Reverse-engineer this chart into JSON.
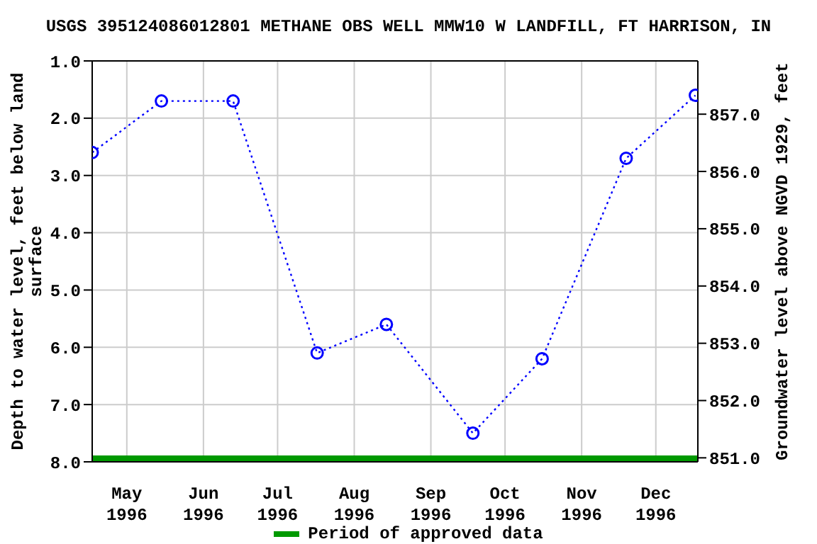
{
  "chart_data": {
    "type": "line",
    "title": "USGS 395124086012801 METHANE OBS WELL MMW10 W LANDFILL, FT HARRISON, IN",
    "ylabel": "Depth to water level, feet below land surface",
    "y2label": "Groundwater level above NGVD 1929, feet",
    "xlim": [
      "1996-05-01",
      "1997-01-01"
    ],
    "xticks": [
      {
        "value": "1996-05-15",
        "label": "May 1996"
      },
      {
        "value": "1996-06-15",
        "label": "Jun 1996"
      },
      {
        "value": "1996-07-15",
        "label": "Jul 1996"
      },
      {
        "value": "1996-08-15",
        "label": "Aug 1996"
      },
      {
        "value": "1996-09-15",
        "label": "Sep 1996"
      },
      {
        "value": "1996-10-15",
        "label": "Oct 1996"
      },
      {
        "value": "1996-11-15",
        "label": "Nov 1996"
      },
      {
        "value": "1996-12-15",
        "label": "Dec 1996"
      }
    ],
    "ylim": [
      8,
      1
    ],
    "yticks": [
      {
        "value": 1,
        "label": "1.0"
      },
      {
        "value": 2,
        "label": "2.0"
      },
      {
        "value": 3,
        "label": "3.0"
      },
      {
        "value": 4,
        "label": "4.0"
      },
      {
        "value": 5,
        "label": "5.0"
      },
      {
        "value": 6,
        "label": "6.0"
      },
      {
        "value": 7,
        "label": "7.0"
      },
      {
        "value": 8,
        "label": "8.0"
      }
    ],
    "y2lim": [
      850.93,
      857.93
    ],
    "y2ticks": [
      {
        "value": 851,
        "label": "851.0"
      },
      {
        "value": 852,
        "label": "852.0"
      },
      {
        "value": 853,
        "label": "853.0"
      },
      {
        "value": 854,
        "label": "854.0"
      },
      {
        "value": 855,
        "label": "855.0"
      },
      {
        "value": 856,
        "label": "856.0"
      },
      {
        "value": 857,
        "label": "857.0"
      }
    ],
    "grid": true,
    "legend": "bottom",
    "series": [
      {
        "color": "#0000ff",
        "marker": "circle",
        "line_style": "dotted",
        "x": [
          "1996-05-01",
          "1996-05-29",
          "1996-06-27",
          "1996-07-31",
          "1996-08-28",
          "1996-10-02",
          "1996-10-30",
          "1996-12-03",
          "1996-12-31"
        ],
        "values": [
          2.6,
          1.7,
          1.7,
          6.1,
          5.6,
          7.5,
          6.2,
          2.7,
          1.6
        ]
      },
      {
        "name": "Period of approved data",
        "color": "#009900",
        "marker": "none",
        "line_style": "solid",
        "x": [
          "1996-05-01",
          "1997-01-01"
        ],
        "values": [
          7.95,
          7.95
        ]
      }
    ]
  }
}
